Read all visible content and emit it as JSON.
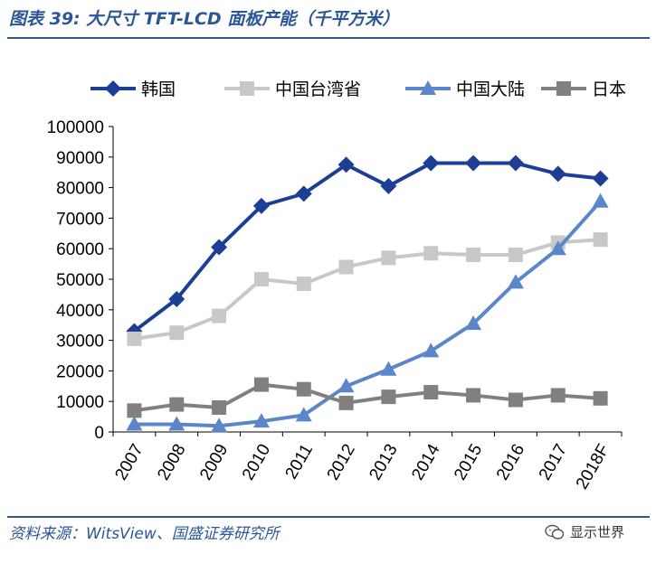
{
  "header": {
    "title": "图表 39: 大尺寸 TFT-LCD 面板产能（千平方米）"
  },
  "footer": {
    "source": "资料来源：WitsView、国盛证券研究所",
    "watermark": "显示世界"
  },
  "colors": {
    "brand": "#2b5797",
    "korea": "#1c3f95",
    "taiwan": "#c8c8c8",
    "mainland": "#5b86c9",
    "japan": "#808080"
  },
  "chart_data": {
    "type": "line",
    "categories": [
      "2007",
      "2008",
      "2009",
      "2010",
      "2011",
      "2012",
      "2013",
      "2014",
      "2015",
      "2016",
      "2017",
      "2018F"
    ],
    "series": [
      {
        "name": "韩国",
        "marker": "diamond",
        "color": "#1c3f95",
        "values": [
          33000,
          43500,
          60500,
          74000,
          78000,
          87500,
          80500,
          88000,
          88000,
          88000,
          84500,
          83000
        ]
      },
      {
        "name": "中国台湾省",
        "marker": "square",
        "color": "#c8c8c8",
        "values": [
          30500,
          32500,
          38000,
          50000,
          48500,
          54000,
          57000,
          58500,
          58000,
          58000,
          62000,
          63000
        ]
      },
      {
        "name": "中国大陆",
        "marker": "triangle",
        "color": "#5b86c9",
        "values": [
          2500,
          2500,
          2000,
          3500,
          5500,
          15000,
          20500,
          26500,
          35500,
          49000,
          60000,
          75500
        ]
      },
      {
        "name": "日本",
        "marker": "square",
        "color": "#808080",
        "values": [
          7000,
          9000,
          8000,
          15500,
          14000,
          9500,
          11500,
          13000,
          12000,
          10500,
          12000,
          11000
        ]
      }
    ],
    "yticks": [
      "0",
      "10000",
      "20000",
      "30000",
      "40000",
      "50000",
      "60000",
      "70000",
      "80000",
      "90000",
      "100000"
    ],
    "ylim": [
      0,
      100000
    ],
    "legend_position": "top",
    "grid": false
  }
}
